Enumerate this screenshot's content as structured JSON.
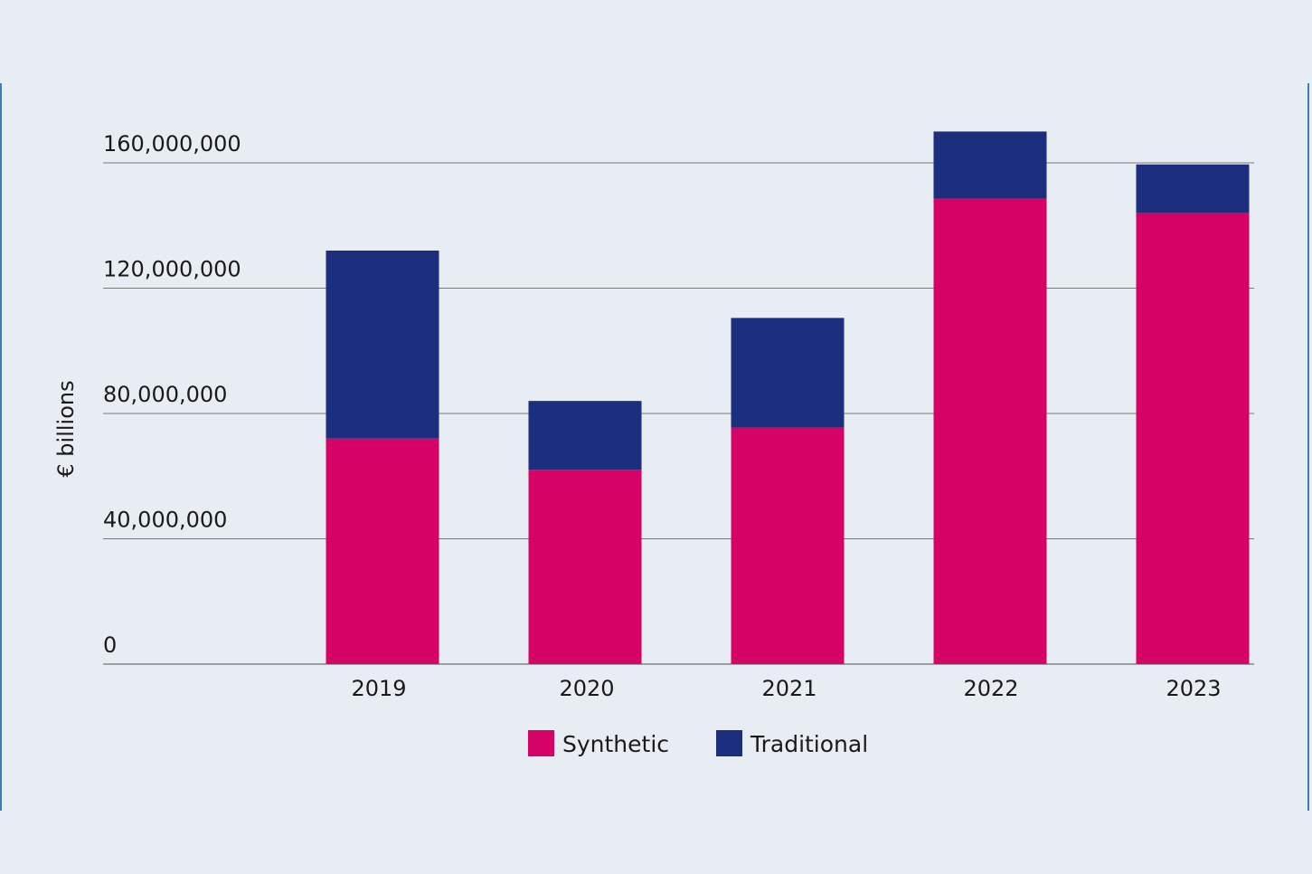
{
  "chart_data": {
    "type": "bar",
    "stacked": true,
    "categories": [
      "2019",
      "2020",
      "2021",
      "2022",
      "2023"
    ],
    "series": [
      {
        "name": "Synthetic",
        "color": "#d60366",
        "values": [
          72000000,
          62000000,
          75500000,
          148500000,
          144000000
        ]
      },
      {
        "name": "Traditional",
        "color": "#1b2f7e",
        "values": [
          60000000,
          22000000,
          35000000,
          21500000,
          15500000
        ]
      }
    ],
    "ylabel": "€ billions",
    "ylim": [
      0,
      160000000
    ],
    "yticks": [
      0,
      40000000,
      80000000,
      120000000,
      160000000
    ],
    "ytick_labels": [
      "0",
      "40,000,000",
      "80,000,000",
      "120,000,000",
      "160,000,000"
    ],
    "grid": true,
    "legend_position": "bottom"
  }
}
